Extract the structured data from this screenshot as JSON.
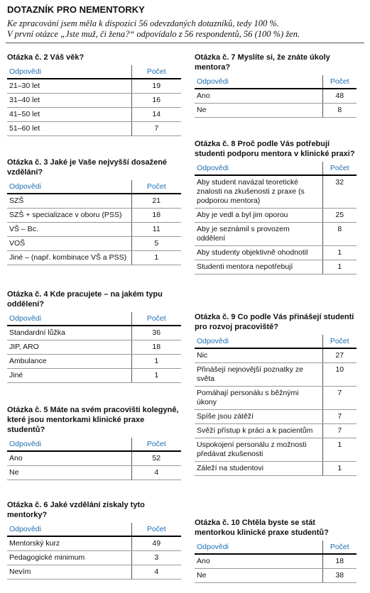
{
  "header": {
    "title": "DOTAZNÍK PRO NEMENTORKY",
    "lines": [
      "Ke zpracování jsem měla k dispozici 56 odevzdaných dotazníků, tedy 100 %.",
      "V první otázce „Jste muž, či žena?“ odpovídalo z 56 respondentů, 56 (100 %) žen."
    ]
  },
  "questions": [
    {
      "title": "Otázka č. 2 Váš věk?",
      "columns": [
        "Odpovědi",
        "Počet"
      ],
      "rows": [
        [
          "21–30 let",
          19
        ],
        [
          "31–40 let",
          16
        ],
        [
          "41–50 let",
          14
        ],
        [
          "51–60 let",
          7
        ]
      ]
    },
    {
      "title": "Otázka č. 3 Jaké je Vaše nejvyšší dosažené vzdělání?",
      "columns": [
        "Odpovědi",
        "Počet"
      ],
      "rows": [
        [
          "SZŠ",
          21
        ],
        [
          "SZŠ + specializace v oboru (PSS)",
          18
        ],
        [
          "VŠ – Bc.",
          11
        ],
        [
          "VOŠ",
          5
        ],
        [
          "Jiné – (např. kombinace VŠ a PSS)",
          1
        ]
      ]
    },
    {
      "title": "Otázka č. 4 Kde pracujete – na jakém typu oddělení?",
      "columns": [
        "Odpovědi",
        "Počet"
      ],
      "rows": [
        [
          "Standardní lůžka",
          36
        ],
        [
          "JIP, ARO",
          18
        ],
        [
          "Ambulance",
          1
        ],
        [
          "Jiné",
          1
        ]
      ]
    },
    {
      "title": "Otázka č. 5 Máte na svém pracovišti kolegyně, které jsou mentorkami klinické praxe studentů?",
      "columns": [
        "Odpovědi",
        "Počet"
      ],
      "rows": [
        [
          "Ano",
          52
        ],
        [
          "Ne",
          4
        ]
      ]
    },
    {
      "title": "Otázka č. 6 Jaké vzdělání získaly tyto mentorky?",
      "columns": [
        "Odpovědi",
        "Počet"
      ],
      "rows": [
        [
          "Mentorský kurz",
          49
        ],
        [
          "Pedagogické minimum",
          3
        ],
        [
          "Nevím",
          4
        ]
      ]
    },
    {
      "title": "Otázka č. 7 Myslíte si, že znáte úkoly mentora?",
      "columns": [
        "Odpovědi",
        "Počet"
      ],
      "rows": [
        [
          "Ano",
          48
        ],
        [
          "Ne",
          8
        ]
      ]
    },
    {
      "title": "Otázka č. 8 Proč podle Vás potřebují studenti podporu mentora v klinické praxi?",
      "columns": [
        "Odpovědi",
        "Počet"
      ],
      "rows": [
        [
          "Aby student navázal teoretické znalosti na zkušenosti z praxe (s podporou mentora)",
          32
        ],
        [
          "Aby je vedl a byl jim oporou",
          25
        ],
        [
          "Aby je seznámil s provozem oddělení",
          8
        ],
        [
          "Aby studenty objektivně ohodnotil",
          1
        ],
        [
          "Studenti mentora nepotřebují",
          1
        ]
      ]
    },
    {
      "title": "Otázka č. 9 Co podle Vás přinášejí studenti pro rozvoj pracoviště?",
      "columns": [
        "Odpovědi",
        "Počet"
      ],
      "rows": [
        [
          "Nic",
          27
        ],
        [
          "Přinášejí nejnovější poznatky ze světa",
          10
        ],
        [
          "Pomáhají personálu s běžnými úkony",
          7
        ],
        [
          "Spíše jsou zátěží",
          7
        ],
        [
          "Svěží přístup k práci a k pacientům",
          7
        ],
        [
          "Uspokojení personálu z možnosti předávat zkušenosti",
          1
        ],
        [
          "Záleží na studentovi",
          1
        ]
      ]
    },
    {
      "title": "Otázka č. 10 Chtěla byste se stát mentorkou klinické praxe studentů?",
      "columns": [
        "Odpovědi",
        "Počet"
      ],
      "rows": [
        [
          "Ano",
          18
        ],
        [
          "Ne",
          38
        ]
      ]
    }
  ]
}
